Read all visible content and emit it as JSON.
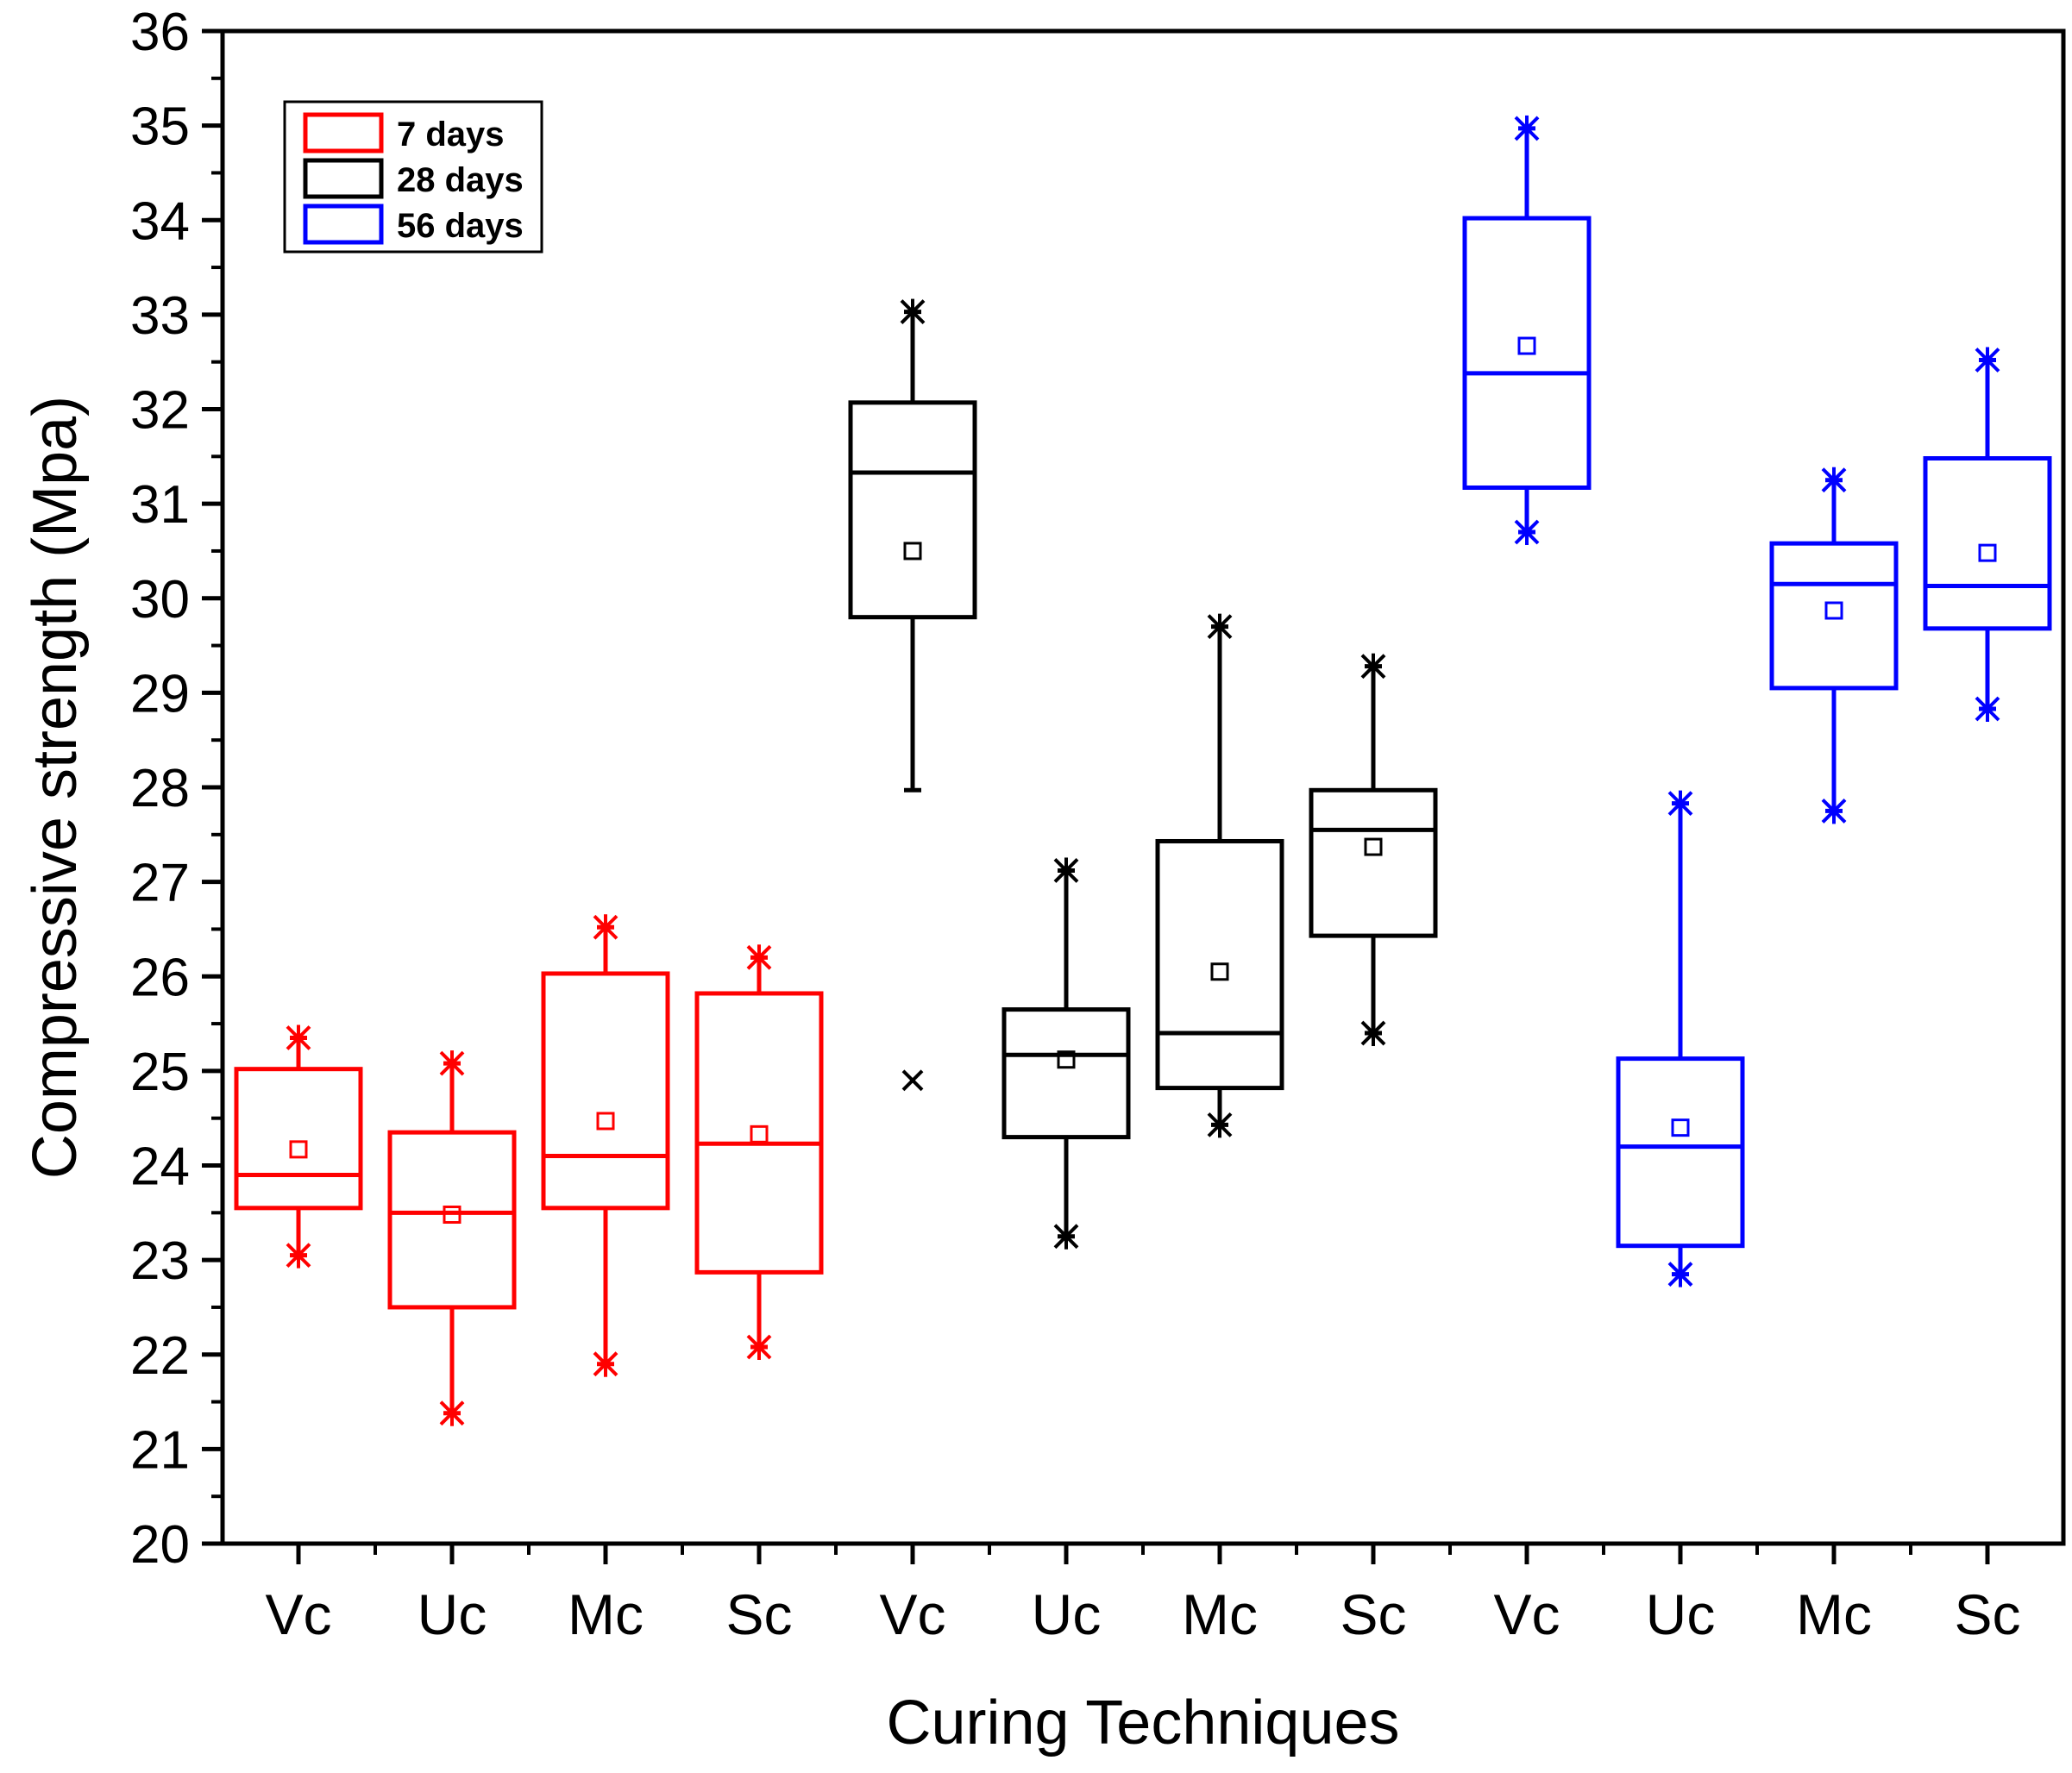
{
  "chart_data": {
    "type": "box",
    "title": "",
    "xlabel": "Curing Techniques",
    "ylabel": "Compressive strength (Mpa)",
    "ylim": [
      20,
      36
    ],
    "yticks": [
      "20",
      "21",
      "22",
      "23",
      "24",
      "25",
      "26",
      "27",
      "28",
      "29",
      "30",
      "31",
      "32",
      "33",
      "34",
      "35",
      "36"
    ],
    "categories": [
      "Vc",
      "Uc",
      "Mc",
      "Sc",
      "Vc",
      "Uc",
      "Mc",
      "Sc",
      "Vc",
      "Uc",
      "Mc",
      "Sc"
    ],
    "legend_position": "top-left",
    "series": [
      {
        "name": "7 days",
        "color": "#ff0000",
        "boxes": [
          {
            "label": "Vc",
            "q1": 23.55,
            "median": 23.9,
            "q3": 25.02,
            "whisker_low": 23.05,
            "whisker_high": 25.35,
            "mean": 24.17,
            "min": 23.05,
            "max": 25.35,
            "outliers": []
          },
          {
            "label": "Uc",
            "q1": 22.5,
            "median": 23.5,
            "q3": 24.35,
            "whisker_low": 21.38,
            "whisker_high": 25.08,
            "mean": 23.48,
            "min": 21.38,
            "max": 25.08,
            "outliers": []
          },
          {
            "label": "Mc",
            "q1": 23.55,
            "median": 24.1,
            "q3": 26.03,
            "whisker_low": 21.9,
            "whisker_high": 26.52,
            "mean": 24.47,
            "min": 21.9,
            "max": 26.52,
            "outliers": []
          },
          {
            "label": "Sc",
            "q1": 22.87,
            "median": 24.23,
            "q3": 25.82,
            "whisker_low": 22.08,
            "whisker_high": 26.2,
            "mean": 24.33,
            "min": 22.08,
            "max": 26.2,
            "outliers": []
          }
        ]
      },
      {
        "name": "28 days",
        "color": "#000000",
        "boxes": [
          {
            "label": "Vc",
            "q1": 29.8,
            "median": 31.33,
            "q3": 32.07,
            "whisker_low": 27.97,
            "whisker_high": 33.03,
            "mean": 30.5,
            "min": null,
            "max": 33.03,
            "outliers": [
              24.9
            ]
          },
          {
            "label": "Uc",
            "q1": 24.3,
            "median": 25.17,
            "q3": 25.65,
            "whisker_low": 23.25,
            "whisker_high": 27.12,
            "mean": 25.12,
            "min": 23.25,
            "max": 27.12,
            "outliers": []
          },
          {
            "label": "Mc",
            "q1": 24.82,
            "median": 25.4,
            "q3": 27.43,
            "whisker_low": 24.43,
            "whisker_high": 29.7,
            "mean": 26.05,
            "min": 24.43,
            "max": 29.7,
            "outliers": []
          },
          {
            "label": "Sc",
            "q1": 26.43,
            "median": 27.55,
            "q3": 27.97,
            "whisker_low": 25.4,
            "whisker_high": 29.28,
            "mean": 27.37,
            "min": 25.4,
            "max": 29.28,
            "outliers": []
          }
        ]
      },
      {
        "name": "56 days",
        "color": "#0000ff",
        "boxes": [
          {
            "label": "Vc",
            "q1": 31.17,
            "median": 32.38,
            "q3": 34.02,
            "whisker_low": 30.7,
            "whisker_high": 34.97,
            "mean": 32.67,
            "min": 30.7,
            "max": 34.97,
            "outliers": []
          },
          {
            "label": "Uc",
            "q1": 23.15,
            "median": 24.2,
            "q3": 25.13,
            "whisker_low": 22.85,
            "whisker_high": 27.83,
            "mean": 24.4,
            "min": 22.85,
            "max": 27.83,
            "outliers": []
          },
          {
            "label": "Mc",
            "q1": 29.05,
            "median": 30.15,
            "q3": 30.58,
            "whisker_low": 27.75,
            "whisker_high": 31.25,
            "mean": 29.87,
            "min": 27.75,
            "max": 31.25,
            "outliers": []
          },
          {
            "label": "Sc",
            "q1": 29.68,
            "median": 30.13,
            "q3": 31.48,
            "whisker_low": 28.83,
            "whisker_high": 32.52,
            "mean": 30.48,
            "min": 28.83,
            "max": 32.52,
            "outliers": []
          }
        ]
      }
    ]
  }
}
